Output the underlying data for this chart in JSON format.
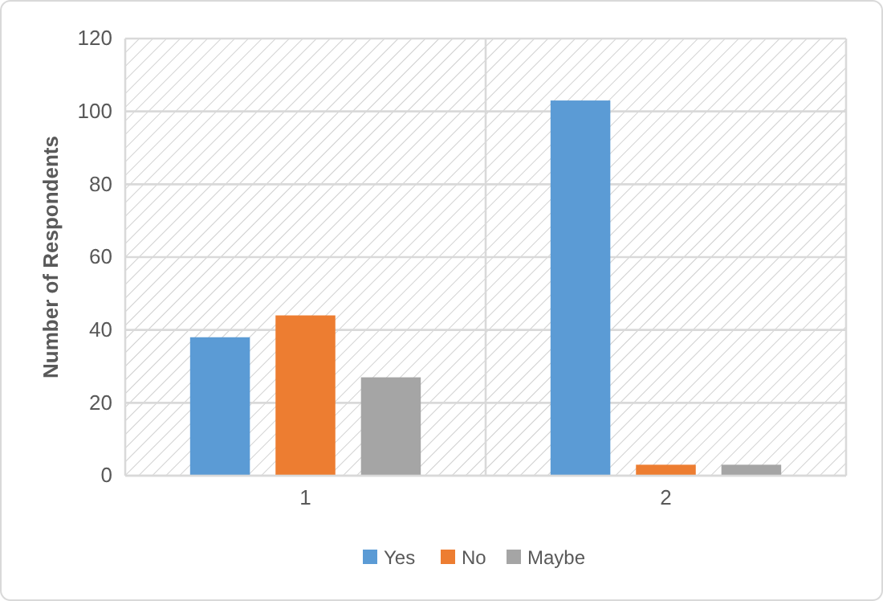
{
  "chart_data": {
    "type": "bar",
    "ylabel": "Number of Respondents",
    "categories": [
      "1",
      "2"
    ],
    "series": [
      {
        "name": "Yes",
        "color": "#5b9bd5",
        "values": [
          38,
          103
        ]
      },
      {
        "name": "No",
        "color": "#ed7d31",
        "values": [
          44,
          3
        ]
      },
      {
        "name": "Maybe",
        "color": "#a5a5a5",
        "values": [
          27,
          3
        ]
      }
    ],
    "ylim": [
      0,
      120
    ],
    "yticks": [
      0,
      20,
      40,
      60,
      80,
      100,
      120
    ],
    "grid": true,
    "legend": "bottom"
  }
}
